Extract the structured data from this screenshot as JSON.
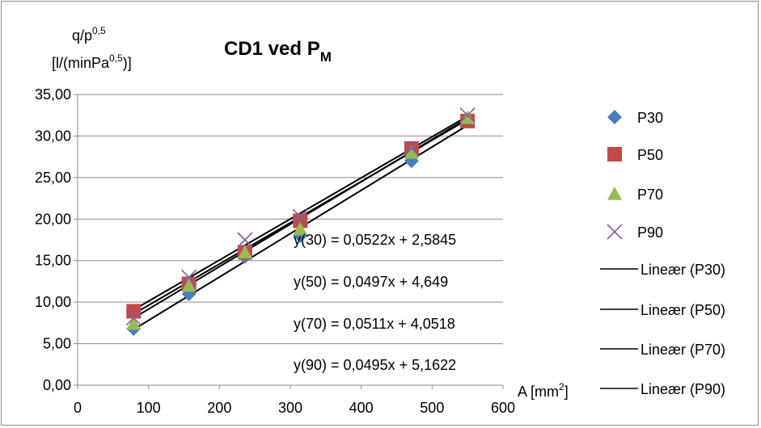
{
  "chart_data": {
    "type": "scatter",
    "title": "CD1 ved P",
    "title_subscript": "M",
    "ylabel_line1": "q/p",
    "ylabel_line1_sup": "0,5",
    "ylabel_line2_a": "[l/(minPa",
    "ylabel_line2_sup": "0,5",
    "ylabel_line2_b": ")]",
    "xlabel": "A [mm",
    "xlabel_sup": "2",
    "xlabel_end": "]",
    "xlim": [
      0,
      600
    ],
    "ylim": [
      0,
      35
    ],
    "xticks": [
      0,
      100,
      200,
      300,
      400,
      500,
      600
    ],
    "yticks": [
      0,
      5,
      10,
      15,
      20,
      25,
      30,
      35
    ],
    "ytick_labels": [
      "0,00",
      "5,00",
      "10,00",
      "15,00",
      "20,00",
      "25,00",
      "30,00",
      "35,00"
    ],
    "grid": "horizontal",
    "legend_position": "right",
    "series": [
      {
        "name": "P30",
        "marker": "diamond",
        "color": "#4a7ebb",
        "x": [
          79,
          157,
          236,
          314,
          471,
          550
        ],
        "y": [
          6.8,
          11.0,
          15.5,
          18.0,
          27.0,
          31.8
        ]
      },
      {
        "name": "P50",
        "marker": "square",
        "color": "#be4b48",
        "x": [
          79,
          157,
          236,
          314,
          471,
          550
        ],
        "y": [
          8.9,
          12.2,
          16.0,
          19.8,
          28.5,
          31.8
        ]
      },
      {
        "name": "P70",
        "marker": "triangle",
        "color": "#98b954",
        "x": [
          79,
          157,
          236,
          314,
          471,
          550
        ],
        "y": [
          7.4,
          12.0,
          16.0,
          18.8,
          28.0,
          32.2
        ]
      },
      {
        "name": "P90",
        "marker": "x",
        "color": "#7d60a0",
        "x": [
          79,
          157,
          236,
          314,
          471,
          550
        ],
        "y": [
          8.1,
          13.0,
          17.5,
          20.3,
          28.5,
          32.5
        ]
      }
    ],
    "trendlines": [
      {
        "name": "Lineær (P30)",
        "slope": 0.0522,
        "intercept": 2.5845,
        "color": "#000000"
      },
      {
        "name": "Lineær (P50)",
        "slope": 0.0497,
        "intercept": 4.649,
        "color": "#000000"
      },
      {
        "name": "Lineær (P70)",
        "slope": 0.0511,
        "intercept": 4.0518,
        "color": "#000000"
      },
      {
        "name": "Lineær (P90)",
        "slope": 0.0495,
        "intercept": 5.1622,
        "color": "#000000"
      }
    ],
    "annotations": [
      "y(30) = 0,0522x + 2,5845",
      "y(50) = 0,0497x + 4,649",
      "y(70) = 0,0511x + 4,0518",
      "y(90) = 0,0495x + 5,1622"
    ]
  }
}
